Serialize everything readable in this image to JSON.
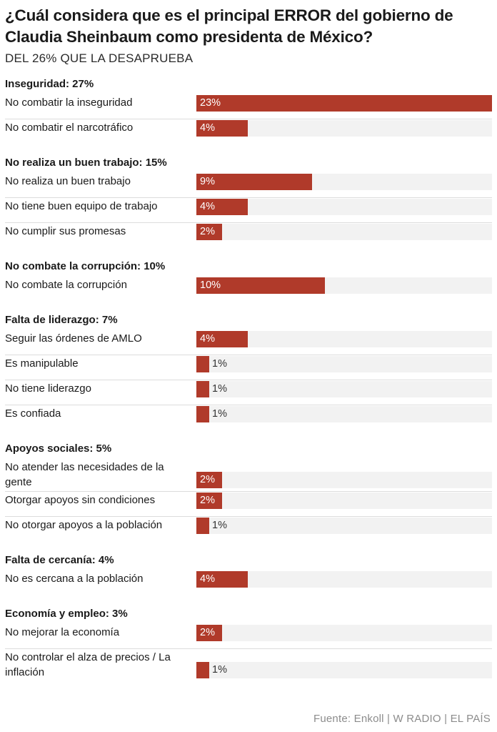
{
  "chart_data": {
    "type": "bar",
    "orientation": "horizontal",
    "title": "¿Cuál considera que es el principal ERROR del gobierno de\nClaudia Sheinbaum como presidenta de México?",
    "subtitle": "DEL 26% QUE LA DESAPRUEBA",
    "value_suffix": "%",
    "xlim": [
      0,
      23
    ],
    "bar_color": "#b03a2a",
    "track_color": "#f2f2f2",
    "groups": [
      {
        "label": "Inseguridad: 27%",
        "items": [
          {
            "label": "No combatir la inseguridad",
            "value": 23
          },
          {
            "label": "No combatir el narcotráfico",
            "value": 4
          }
        ]
      },
      {
        "label": "No realiza un buen trabajo: 15%",
        "items": [
          {
            "label": "No realiza un buen trabajo",
            "value": 9
          },
          {
            "label": "No tiene buen equipo de trabajo",
            "value": 4
          },
          {
            "label": "No cumplir sus promesas",
            "value": 2
          }
        ]
      },
      {
        "label": "No combate la corrupción: 10%",
        "items": [
          {
            "label": "No combate la corrupción",
            "value": 10
          }
        ]
      },
      {
        "label": "Falta de liderazgo: 7%",
        "items": [
          {
            "label": "Seguir las órdenes de AMLO",
            "value": 4
          },
          {
            "label": "Es manipulable",
            "value": 1
          },
          {
            "label": "No tiene liderazgo",
            "value": 1
          },
          {
            "label": "Es confiada",
            "value": 1
          }
        ]
      },
      {
        "label": "Apoyos sociales: 5%",
        "items": [
          {
            "label": "No atender las necesidades de la gente",
            "value": 2
          },
          {
            "label": "Otorgar apoyos sin condiciones",
            "value": 2
          },
          {
            "label": "No otorgar apoyos a la población",
            "value": 1
          }
        ]
      },
      {
        "label": "Falta de cercanía: 4%",
        "items": [
          {
            "label": "No es cercana a la población",
            "value": 4
          }
        ]
      },
      {
        "label": "Economía y empleo: 3%",
        "items": [
          {
            "label": "No mejorar la economía",
            "value": 2
          },
          {
            "label": "No controlar el alza de precios / La inflación",
            "value": 1
          }
        ]
      }
    ],
    "source": "Fuente: Enkoll | W RADIO | EL PAÍS"
  }
}
